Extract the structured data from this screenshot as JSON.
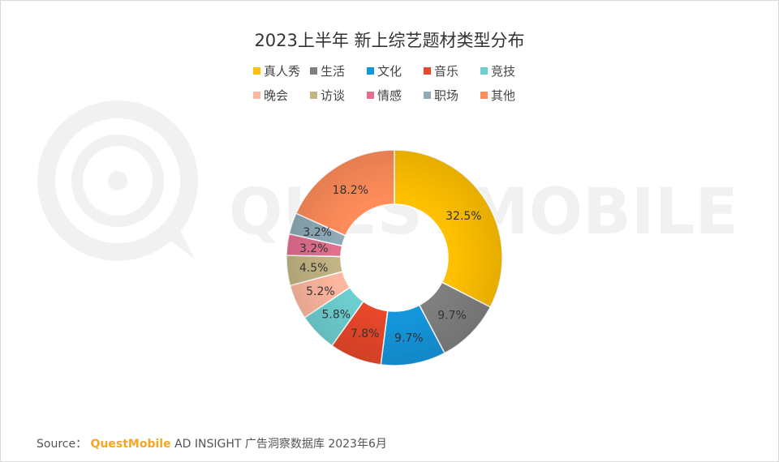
{
  "chart_data": {
    "type": "pie",
    "title": "2023上半年 新上综艺题材类型分布",
    "categories": [
      "真人秀",
      "生活",
      "文化",
      "音乐",
      "竞技",
      "晚会",
      "访谈",
      "情感",
      "职场",
      "其他"
    ],
    "values": [
      32.5,
      9.7,
      9.7,
      7.8,
      5.8,
      5.2,
      4.5,
      3.2,
      3.2,
      18.2
    ],
    "value_labels": [
      "32.5%",
      "9.7%",
      "9.7%",
      "7.8%",
      "5.8%",
      "5.2%",
      "4.5%",
      "3.2%",
      "3.2%",
      "18.2%"
    ],
    "colors": [
      "#FFC000",
      "#7F7F7F",
      "#1496DC",
      "#E8472A",
      "#6ECFD0",
      "#FFB7A0",
      "#C3B584",
      "#E36F8F",
      "#8FAAB8",
      "#FF8C5A"
    ],
    "legend_position": "top",
    "donut": true
  },
  "watermark": {
    "text": "QUESTMOBILE"
  },
  "source": {
    "prefix": "Source：",
    "brand": "QuestMobile",
    "rest": "AD INSIGHT 广告洞察数据库 2023年6月"
  }
}
